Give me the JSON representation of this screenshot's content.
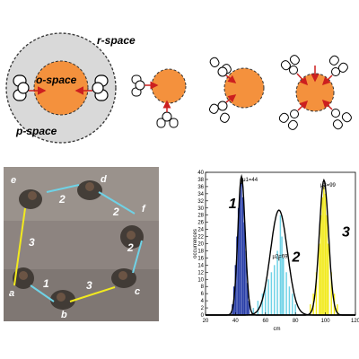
{
  "diagram": {
    "r_space": "r-space",
    "o_space": "o-space",
    "p_space": "p-space"
  },
  "photo": {
    "person_labels": [
      "a",
      "b",
      "c",
      "d",
      "e",
      "f"
    ],
    "edge_labels": [
      "1",
      "2",
      "2",
      "2",
      "3",
      "3"
    ]
  },
  "chart_data": {
    "type": "histogram",
    "xlabel": "cm",
    "ylabel": "occurrences",
    "xlim": [
      20,
      120
    ],
    "ylim": [
      0,
      40
    ],
    "xticks": [
      20,
      40,
      60,
      80,
      100,
      120
    ],
    "yticks": [
      0,
      2,
      4,
      6,
      8,
      10,
      12,
      14,
      16,
      18,
      20,
      22,
      24,
      26,
      28,
      30,
      32,
      34,
      36,
      38,
      40
    ],
    "series": [
      {
        "name": "1",
        "mean": 44,
        "mean_label": "μ1=44",
        "color": "#2a3fa8",
        "bins": [
          [
            38,
            3
          ],
          [
            39,
            8
          ],
          [
            40,
            14
          ],
          [
            41,
            22
          ],
          [
            42,
            30
          ],
          [
            43,
            35
          ],
          [
            44,
            37
          ],
          [
            45,
            33
          ],
          [
            46,
            26
          ],
          [
            47,
            18
          ],
          [
            48,
            9
          ],
          [
            49,
            4
          ]
        ]
      },
      {
        "name": "2",
        "mean": 69,
        "mean_label": "μ2=69",
        "color": "#6fd2e6",
        "bins": [
          [
            52,
            2
          ],
          [
            55,
            4
          ],
          [
            58,
            6
          ],
          [
            60,
            8
          ],
          [
            62,
            10
          ],
          [
            64,
            12
          ],
          [
            66,
            14
          ],
          [
            68,
            18
          ],
          [
            70,
            28
          ],
          [
            71,
            22
          ],
          [
            72,
            16
          ],
          [
            74,
            12
          ],
          [
            76,
            8
          ],
          [
            78,
            6
          ],
          [
            80,
            3
          ]
        ]
      },
      {
        "name": "3",
        "mean": 99,
        "mean_label": "μ3=99",
        "color": "#f2ea1e",
        "bins": [
          [
            90,
            3
          ],
          [
            92,
            6
          ],
          [
            94,
            12
          ],
          [
            96,
            20
          ],
          [
            97,
            28
          ],
          [
            98,
            33
          ],
          [
            99,
            36
          ],
          [
            100,
            34
          ],
          [
            101,
            28
          ],
          [
            102,
            20
          ],
          [
            104,
            12
          ],
          [
            106,
            6
          ],
          [
            108,
            3
          ]
        ]
      }
    ]
  }
}
